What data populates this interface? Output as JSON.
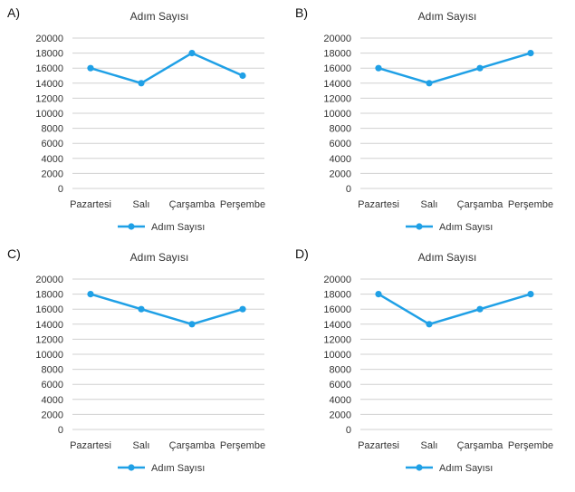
{
  "chart_data": [
    {
      "letter": "A)",
      "type": "line",
      "title": "Adım Sayısı",
      "categories": [
        "Pazartesi",
        "Salı",
        "Çarşamba",
        "Perşembe"
      ],
      "series": [
        {
          "name": "Adım Sayısı",
          "values": [
            16000,
            14000,
            18000,
            15000
          ]
        }
      ],
      "yticks": [
        0,
        2000,
        4000,
        6000,
        8000,
        10000,
        12000,
        14000,
        16000,
        18000,
        20000
      ],
      "ylim": [
        0,
        20000
      ],
      "grid": true,
      "legend": "bottom",
      "color": "#1fa0e6"
    },
    {
      "letter": "B)",
      "type": "line",
      "title": "Adım Sayısı",
      "categories": [
        "Pazartesi",
        "Salı",
        "Çarşamba",
        "Perşembe"
      ],
      "series": [
        {
          "name": "Adım Sayısı",
          "values": [
            16000,
            14000,
            16000,
            18000
          ]
        }
      ],
      "yticks": [
        0,
        2000,
        4000,
        6000,
        8000,
        10000,
        12000,
        14000,
        16000,
        18000,
        20000
      ],
      "ylim": [
        0,
        20000
      ],
      "grid": true,
      "legend": "bottom",
      "color": "#1fa0e6"
    },
    {
      "letter": "C)",
      "type": "line",
      "title": "Adım Sayısı",
      "categories": [
        "Pazartesi",
        "Salı",
        "Çarşamba",
        "Perşembe"
      ],
      "series": [
        {
          "name": "Adım Sayısı",
          "values": [
            18000,
            16000,
            14000,
            16000
          ]
        }
      ],
      "yticks": [
        0,
        2000,
        4000,
        6000,
        8000,
        10000,
        12000,
        14000,
        16000,
        18000,
        20000
      ],
      "ylim": [
        0,
        20000
      ],
      "grid": true,
      "legend": "bottom",
      "color": "#1fa0e6"
    },
    {
      "letter": "D)",
      "type": "line",
      "title": "Adım Sayısı",
      "categories": [
        "Pazartesi",
        "Salı",
        "Çarşamba",
        "Perşembe"
      ],
      "series": [
        {
          "name": "Adım Sayısı",
          "values": [
            18000,
            14000,
            16000,
            18000
          ]
        }
      ],
      "yticks": [
        0,
        2000,
        4000,
        6000,
        8000,
        10000,
        12000,
        14000,
        16000,
        18000,
        20000
      ],
      "ylim": [
        0,
        20000
      ],
      "grid": true,
      "legend": "bottom",
      "color": "#1fa0e6"
    }
  ]
}
